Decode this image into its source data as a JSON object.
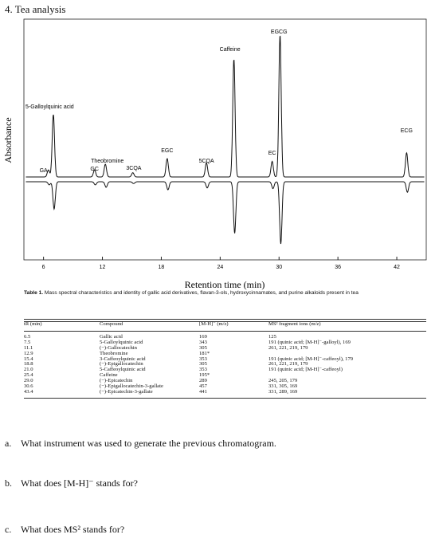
{
  "question_title": "4.  Tea analysis",
  "chart_data": {
    "type": "line",
    "xlabel": "Retention time (min)",
    "ylabel": "Absorbance",
    "xlim": [
      4,
      45
    ],
    "xticks": [
      6,
      12,
      18,
      24,
      30,
      36,
      42
    ],
    "grid": false,
    "peaks": [
      {
        "label": "GA",
        "x": 6.5,
        "height": 0.05
      },
      {
        "label": "5-Galloylquinic acid",
        "x": 7.0,
        "height": 0.44
      },
      {
        "label": "GC",
        "x": 11.2,
        "height": 0.05
      },
      {
        "label": "Theobromine",
        "x": 12.3,
        "height": 0.09
      },
      {
        "label": "3CQA",
        "x": 15.1,
        "height": 0.03
      },
      {
        "label": "EGC",
        "x": 18.6,
        "height": 0.13
      },
      {
        "label": "5CQA",
        "x": 22.6,
        "height": 0.1
      },
      {
        "label": "Caffeine",
        "x": 25.4,
        "height": 0.83
      },
      {
        "label": "EC",
        "x": 29.3,
        "height": 0.11
      },
      {
        "label": "EGCG",
        "x": 30.1,
        "height": 1.0
      },
      {
        "label": "ECG",
        "x": 43.0,
        "height": 0.17
      }
    ]
  },
  "table": {
    "caption_bold": "Table 1.",
    "caption_text": "  Mass spectral characteristics and identity of gallic acid derivatives, flavan-3-ols, hydroxycinnamates, and purine alkaloids present in tea",
    "headers": [
      "tR (min)",
      "Compound",
      "[M-H]⁻ (m/z)",
      "MS² fragment ions (m/z)"
    ],
    "rows": [
      [
        "6.5",
        "Gallic acid",
        "169",
        "125"
      ],
      [
        "7.5",
        "5-Galloylquinic acid",
        "343",
        "191 (quinic acid; [M-H]⁻-galloyl), 169"
      ],
      [
        "11.1",
        "(−)-Gallocatechin",
        "305",
        "261, 221, 219, 179"
      ],
      [
        "12.9",
        "Theobromine",
        "181*",
        ""
      ],
      [
        "15.4",
        "3-Caffeoylquinic acid",
        "353",
        "191 (quinic acid; [M-H]⁻-caffeoyl), 179"
      ],
      [
        "18.8",
        "(−)-Epigallocatechin",
        "305",
        "261, 221, 219, 179"
      ],
      [
        "21.0",
        "5-Caffeoylquinic acid",
        "353",
        "191 (quinic acid; [M-H]⁻-caffeoyl)"
      ],
      [
        "25.4",
        "Caffeine",
        "195*",
        ""
      ],
      [
        "29.0",
        "(−)-Epicatechin",
        "289",
        "245, 205, 179"
      ],
      [
        "30.6",
        "(−)-Epigallocatechin-3-gallate",
        "457",
        "331, 305, 169"
      ],
      [
        "43.4",
        "(−)-Epicatechin-3-gallate",
        "441",
        "331, 289, 169"
      ]
    ]
  },
  "questions": [
    {
      "letter": "a.",
      "text": "What instrument was used to generate the previous chromatogram."
    },
    {
      "letter": "b.",
      "text": "What does [M-H]⁻ stands for?"
    },
    {
      "letter": "c.",
      "text": "What does MS² stands for?"
    }
  ]
}
